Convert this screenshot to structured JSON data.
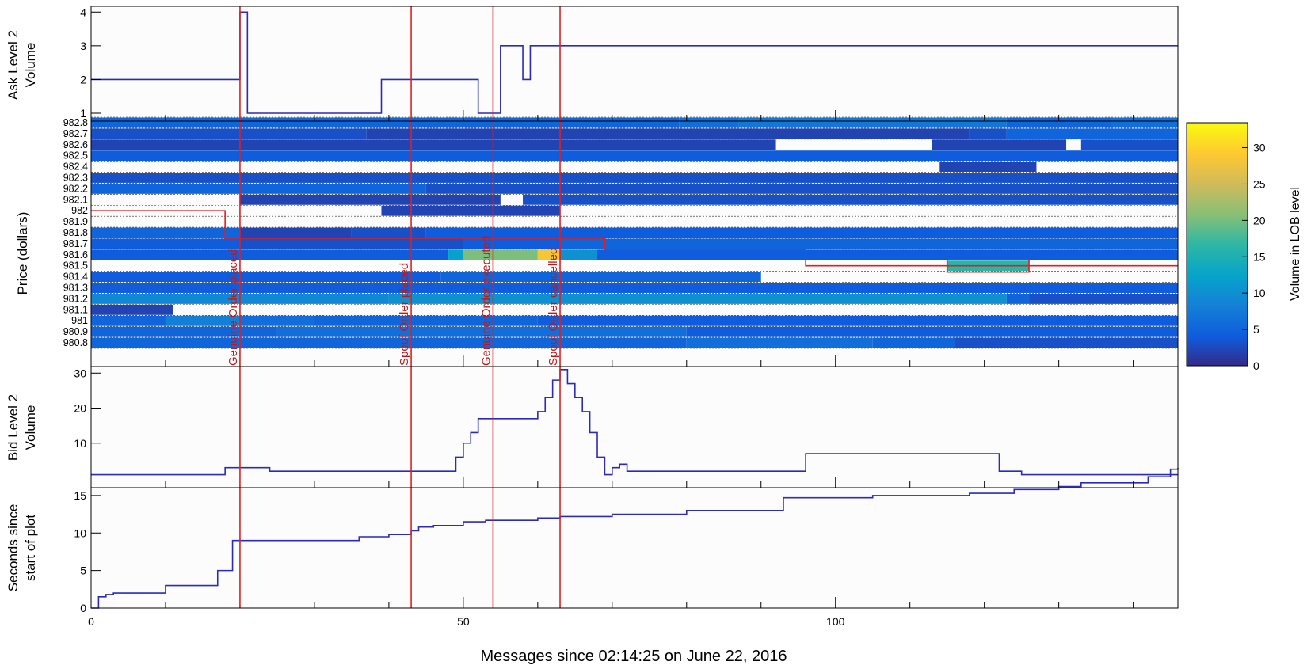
{
  "chart_data": {
    "type": "multi-panel",
    "x_axis": {
      "label": "Messages since 02:14:25 on June 22, 2016",
      "range": [
        0,
        146
      ],
      "ticks": [
        0,
        50,
        100
      ],
      "tick_labels": [
        "0",
        "50",
        "100"
      ]
    },
    "events": [
      {
        "label": "Genuine Order placed",
        "x": 20
      },
      {
        "label": "Spoof Order placed",
        "x": 43
      },
      {
        "label": "Genuine Order executed",
        "x": 54
      },
      {
        "label": "Spoof Order cancelled",
        "x": 63
      }
    ],
    "ask_panel": {
      "ylabel_lines": [
        "Ask Level 2",
        "Volume"
      ],
      "ylim": [
        1,
        4.1
      ],
      "ticks": [
        1,
        2,
        3,
        4
      ],
      "tick_labels": [
        "1",
        "2",
        "3",
        "4"
      ],
      "color": "#2b2bb5",
      "steps": [
        {
          "x": 0,
          "y": 2
        },
        {
          "x": 20,
          "y": 4
        },
        {
          "x": 21,
          "y": 1
        },
        {
          "x": 39,
          "y": 2
        },
        {
          "x": 52,
          "y": 1
        },
        {
          "x": 55,
          "y": 3
        },
        {
          "x": 58,
          "y": 2
        },
        {
          "x": 59,
          "y": 3
        },
        {
          "x": 146,
          "y": 3
        }
      ]
    },
    "heatmap_panel": {
      "ylabel": "Price (dollars)",
      "price_levels": [
        "982.8",
        "982.7",
        "982.6",
        "982.5",
        "982.4",
        "982.3",
        "982.2",
        "982.1",
        "982",
        "981.9",
        "981.8",
        "981.7",
        "981.6",
        "981.5",
        "981.4",
        "981.3",
        "981.2",
        "981.1",
        "981",
        "980.9",
        "980.8"
      ],
      "colorbar": {
        "label": "Volume in LOB level",
        "range": [
          0,
          33
        ],
        "ticks": [
          0,
          5,
          10,
          15,
          20,
          25,
          30
        ],
        "tick_labels": [
          "0",
          "5",
          "10",
          "15",
          "20",
          "25",
          "30"
        ]
      },
      "cells": [
        {
          "price": "982.8",
          "segments": [
            [
              0,
              79,
              5
            ],
            [
              79,
              87,
              6
            ],
            [
              87,
              123,
              7
            ],
            [
              123,
              137,
              5
            ],
            [
              137,
              146,
              6
            ]
          ]
        },
        {
          "price": "982.7",
          "segments": [
            [
              0,
              37,
              3
            ],
            [
              37,
              118,
              2
            ],
            [
              118,
              123,
              3
            ],
            [
              123,
              146,
              5
            ]
          ]
        },
        {
          "price": "982.6",
          "segments": [
            [
              0,
              92,
              2
            ],
            [
              92,
              113,
              null
            ],
            [
              113,
              131,
              2
            ],
            [
              131,
              133,
              null
            ],
            [
              133,
              146,
              3
            ]
          ]
        },
        {
          "price": "982.5",
          "segments": [
            [
              0,
              146,
              4
            ]
          ]
        },
        {
          "price": "982.4",
          "segments": [
            [
              0,
              114,
              null
            ],
            [
              114,
              127,
              2
            ],
            [
              127,
              146,
              null
            ]
          ]
        },
        {
          "price": "982.3",
          "segments": [
            [
              0,
              146,
              3
            ]
          ]
        },
        {
          "price": "982.2",
          "segments": [
            [
              0,
              45,
              5
            ],
            [
              45,
              146,
              3
            ]
          ]
        },
        {
          "price": "982.1",
          "segments": [
            [
              0,
              20,
              null
            ],
            [
              20,
              55,
              2
            ],
            [
              55,
              58,
              null
            ],
            [
              58,
              146,
              3
            ]
          ]
        },
        {
          "price": "982",
          "segments": [
            [
              0,
              39,
              null
            ],
            [
              39,
              63,
              2
            ],
            [
              63,
              146,
              null
            ]
          ]
        },
        {
          "price": "981.9",
          "segments": [
            [
              0,
              146,
              null
            ]
          ]
        },
        {
          "price": "981.8",
          "segments": [
            [
              0,
              20,
              5
            ],
            [
              20,
              35,
              2
            ],
            [
              35,
              45,
              3
            ],
            [
              45,
              63,
              4
            ],
            [
              63,
              146,
              4
            ]
          ]
        },
        {
          "price": "981.7",
          "segments": [
            [
              0,
              20,
              4
            ],
            [
              20,
              50,
              3
            ],
            [
              50,
              63,
              4
            ],
            [
              63,
              146,
              5
            ]
          ]
        },
        {
          "price": "981.6",
          "segments": [
            [
              0,
              48,
              4
            ],
            [
              48,
              50,
              12
            ],
            [
              50,
              60,
              20
            ],
            [
              60,
              63,
              28
            ],
            [
              63,
              68,
              10
            ],
            [
              68,
              146,
              4
            ]
          ]
        },
        {
          "price": "981.5",
          "segments": [
            [
              0,
              115,
              null
            ],
            [
              115,
              126,
              16
            ],
            [
              126,
              146,
              null
            ]
          ]
        },
        {
          "price": "981.4",
          "segments": [
            [
              0,
              47,
              4
            ],
            [
              47,
              90,
              5
            ],
            [
              90,
              146,
              null
            ]
          ]
        },
        {
          "price": "981.3",
          "segments": [
            [
              0,
              146,
              4
            ]
          ]
        },
        {
          "price": "981.2",
          "segments": [
            [
              0,
              40,
              9
            ],
            [
              40,
              123,
              10
            ],
            [
              123,
              126,
              5
            ],
            [
              126,
              146,
              3
            ]
          ]
        },
        {
          "price": "981.1",
          "segments": [
            [
              0,
              11,
              2
            ],
            [
              11,
              146,
              null
            ]
          ]
        },
        {
          "price": "981",
          "segments": [
            [
              0,
              10,
              5
            ],
            [
              10,
              20,
              8
            ],
            [
              20,
              30,
              6
            ],
            [
              30,
              60,
              5
            ],
            [
              60,
              146,
              4
            ]
          ]
        },
        {
          "price": "980.9",
          "segments": [
            [
              0,
              25,
              5
            ],
            [
              25,
              80,
              6
            ],
            [
              80,
              146,
              4
            ]
          ]
        },
        {
          "price": "980.8",
          "segments": [
            [
              0,
              80,
              5
            ],
            [
              80,
              105,
              6
            ],
            [
              105,
              116,
              5
            ],
            [
              116,
              146,
              3
            ]
          ]
        }
      ],
      "best_price_line": {
        "color": "#e02020",
        "points": [
          [
            0,
            982
          ],
          [
            18,
            982
          ],
          [
            18,
            981.75
          ],
          [
            69,
            981.75
          ],
          [
            69,
            981.65
          ],
          [
            96,
            981.65
          ],
          [
            96,
            981.5
          ],
          [
            146,
            981.5
          ]
        ]
      },
      "highlight_box": {
        "x": [
          115,
          126
        ],
        "price": "981.5",
        "color": "#e02020"
      }
    },
    "bid_panel": {
      "ylabel_lines": [
        "Bid Level 2",
        "Volume"
      ],
      "ylim": [
        0,
        33
      ],
      "ticks": [
        10,
        20,
        30
      ],
      "tick_labels": [
        "10",
        "20",
        "30"
      ],
      "color": "#2b2bb5",
      "steps": [
        {
          "x": 0,
          "y": 1
        },
        {
          "x": 18,
          "y": 3
        },
        {
          "x": 24,
          "y": 2
        },
        {
          "x": 49,
          "y": 6
        },
        {
          "x": 50,
          "y": 10
        },
        {
          "x": 51,
          "y": 13
        },
        {
          "x": 52,
          "y": 17
        },
        {
          "x": 60,
          "y": 19
        },
        {
          "x": 61,
          "y": 23
        },
        {
          "x": 62,
          "y": 28
        },
        {
          "x": 63,
          "y": 31
        },
        {
          "x": 64,
          "y": 27
        },
        {
          "x": 65,
          "y": 23
        },
        {
          "x": 66,
          "y": 19
        },
        {
          "x": 67,
          "y": 13
        },
        {
          "x": 68,
          "y": 6
        },
        {
          "x": 69,
          "y": 1
        },
        {
          "x": 70,
          "y": 3
        },
        {
          "x": 71,
          "y": 4
        },
        {
          "x": 72,
          "y": 2
        },
        {
          "x": 96,
          "y": 7
        },
        {
          "x": 122,
          "y": 2
        },
        {
          "x": 125,
          "y": 1
        },
        {
          "x": 146,
          "y": 1
        }
      ]
    },
    "seconds_panel": {
      "ylabel_lines": [
        "Seconds since",
        "start of plot"
      ],
      "ylim": [
        0,
        19
      ],
      "ticks": [
        0,
        5,
        10,
        15
      ],
      "tick_labels": [
        "0",
        "5",
        "10",
        "15"
      ],
      "color": "#2b2bb5",
      "steps": [
        {
          "x": 0,
          "y": 0
        },
        {
          "x": 1,
          "y": 1.5
        },
        {
          "x": 2,
          "y": 1.8
        },
        {
          "x": 3,
          "y": 2
        },
        {
          "x": 10,
          "y": 3
        },
        {
          "x": 17,
          "y": 5
        },
        {
          "x": 19,
          "y": 9
        },
        {
          "x": 36,
          "y": 9.5
        },
        {
          "x": 40,
          "y": 9.8
        },
        {
          "x": 43,
          "y": 10.3
        },
        {
          "x": 44,
          "y": 10.8
        },
        {
          "x": 46,
          "y": 11
        },
        {
          "x": 50,
          "y": 11.5
        },
        {
          "x": 53,
          "y": 11.7
        },
        {
          "x": 60,
          "y": 12
        },
        {
          "x": 63,
          "y": 12.2
        },
        {
          "x": 70,
          "y": 12.5
        },
        {
          "x": 80,
          "y": 13
        },
        {
          "x": 93,
          "y": 14.7
        },
        {
          "x": 105,
          "y": 15
        },
        {
          "x": 118,
          "y": 15.3
        },
        {
          "x": 124,
          "y": 15.8
        },
        {
          "x": 130,
          "y": 16.2
        },
        {
          "x": 133,
          "y": 16.7
        },
        {
          "x": 142,
          "y": 17.5
        },
        {
          "x": 145,
          "y": 18.5
        },
        {
          "x": 146,
          "y": 18.7
        }
      ]
    }
  }
}
